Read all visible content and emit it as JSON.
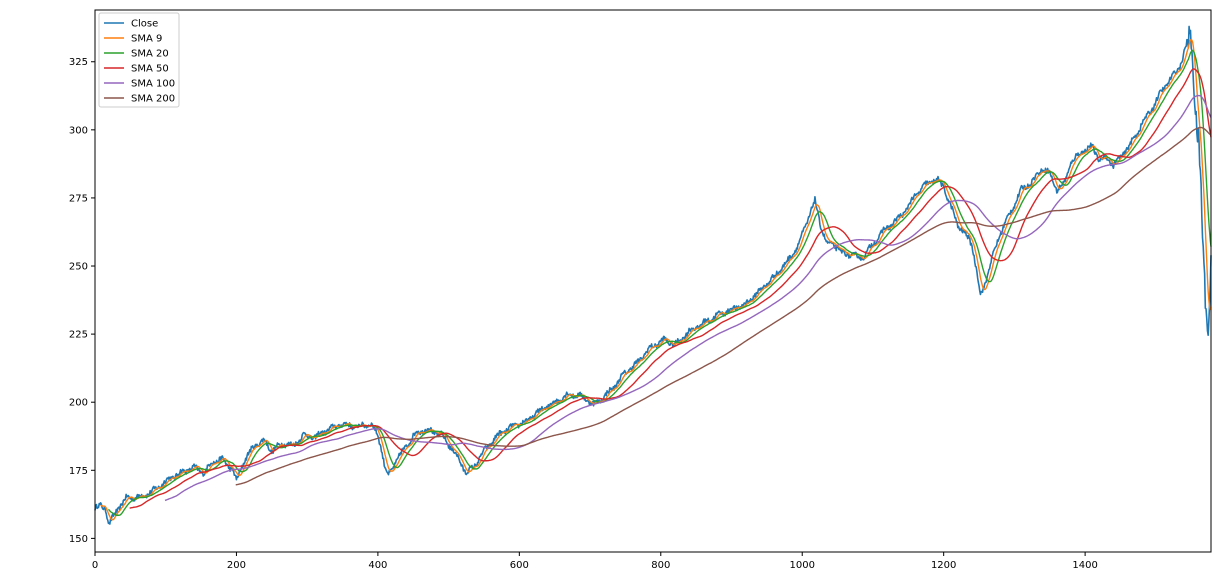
{
  "chart_data": {
    "type": "line",
    "title": "",
    "xlabel": "",
    "ylabel": "",
    "xlim": [
      0,
      1578
    ],
    "ylim": [
      145,
      344
    ],
    "xticks": [
      0,
      200,
      400,
      600,
      800,
      1000,
      1200,
      1400
    ],
    "yticks": [
      150,
      175,
      200,
      225,
      250,
      275,
      300,
      325
    ],
    "grid": false,
    "legend_position": "top-left",
    "close_anchors": [
      [
        0,
        161
      ],
      [
        8,
        162
      ],
      [
        15,
        161
      ],
      [
        20,
        155
      ],
      [
        30,
        160
      ],
      [
        45,
        165
      ],
      [
        60,
        165
      ],
      [
        80,
        167
      ],
      [
        100,
        171
      ],
      [
        120,
        174
      ],
      [
        140,
        176
      ],
      [
        155,
        174
      ],
      [
        165,
        178
      ],
      [
        180,
        179
      ],
      [
        195,
        175
      ],
      [
        200,
        171
      ],
      [
        210,
        178
      ],
      [
        225,
        184
      ],
      [
        240,
        186
      ],
      [
        250,
        182
      ],
      [
        265,
        185
      ],
      [
        280,
        184
      ],
      [
        295,
        188
      ],
      [
        310,
        187
      ],
      [
        330,
        190
      ],
      [
        350,
        192
      ],
      [
        370,
        191
      ],
      [
        390,
        192
      ],
      [
        400,
        188
      ],
      [
        405,
        183
      ],
      [
        410,
        176
      ],
      [
        415,
        173
      ],
      [
        425,
        178
      ],
      [
        440,
        184
      ],
      [
        455,
        189
      ],
      [
        470,
        190
      ],
      [
        490,
        188
      ],
      [
        510,
        181
      ],
      [
        525,
        174
      ],
      [
        535,
        176
      ],
      [
        550,
        182
      ],
      [
        570,
        188
      ],
      [
        590,
        191
      ],
      [
        610,
        193
      ],
      [
        630,
        197
      ],
      [
        650,
        200
      ],
      [
        670,
        203
      ],
      [
        690,
        202
      ],
      [
        705,
        199
      ],
      [
        720,
        202
      ],
      [
        735,
        206
      ],
      [
        750,
        211
      ],
      [
        765,
        214
      ],
      [
        785,
        220
      ],
      [
        805,
        223
      ],
      [
        820,
        221
      ],
      [
        840,
        226
      ],
      [
        860,
        229
      ],
      [
        880,
        232
      ],
      [
        900,
        234
      ],
      [
        920,
        236
      ],
      [
        940,
        241
      ],
      [
        960,
        246
      ],
      [
        980,
        252
      ],
      [
        995,
        258
      ],
      [
        1005,
        265
      ],
      [
        1012,
        270
      ],
      [
        1018,
        274
      ],
      [
        1025,
        266
      ],
      [
        1035,
        258
      ],
      [
        1045,
        258
      ],
      [
        1055,
        255
      ],
      [
        1070,
        254
      ],
      [
        1085,
        253
      ],
      [
        1100,
        258
      ],
      [
        1115,
        263
      ],
      [
        1130,
        266
      ],
      [
        1145,
        270
      ],
      [
        1160,
        276
      ],
      [
        1175,
        280
      ],
      [
        1190,
        282
      ],
      [
        1200,
        279
      ],
      [
        1210,
        272
      ],
      [
        1220,
        265
      ],
      [
        1230,
        262
      ],
      [
        1240,
        258
      ],
      [
        1247,
        248
      ],
      [
        1252,
        239
      ],
      [
        1258,
        243
      ],
      [
        1265,
        250
      ],
      [
        1280,
        262
      ],
      [
        1295,
        270
      ],
      [
        1310,
        278
      ],
      [
        1325,
        281
      ],
      [
        1340,
        286
      ],
      [
        1350,
        284
      ],
      [
        1360,
        278
      ],
      [
        1370,
        280
      ],
      [
        1380,
        288
      ],
      [
        1395,
        292
      ],
      [
        1410,
        294
      ],
      [
        1420,
        289
      ],
      [
        1430,
        290
      ],
      [
        1440,
        287
      ],
      [
        1450,
        290
      ],
      [
        1465,
        295
      ],
      [
        1480,
        302
      ],
      [
        1495,
        308
      ],
      [
        1510,
        315
      ],
      [
        1525,
        320
      ],
      [
        1535,
        324
      ],
      [
        1542,
        330
      ],
      [
        1548,
        335
      ],
      [
        1552,
        328
      ],
      [
        1556,
        305
      ],
      [
        1560,
        296
      ],
      [
        1563,
        285
      ],
      [
        1566,
        262
      ],
      [
        1569,
        244
      ],
      [
        1572,
        230
      ],
      [
        1575,
        228
      ],
      [
        1578,
        252
      ]
    ],
    "series": [
      {
        "name": "Close",
        "color": "#1f77b4",
        "window": 1
      },
      {
        "name": "SMA 9",
        "color": "#ff7f0e",
        "window": 9
      },
      {
        "name": "SMA 20",
        "color": "#2ca02c",
        "window": 20
      },
      {
        "name": "SMA 50",
        "color": "#d62728",
        "window": 50
      },
      {
        "name": "SMA 100",
        "color": "#9467bd",
        "window": 100
      },
      {
        "name": "SMA 200",
        "color": "#8c564b",
        "window": 200
      }
    ]
  }
}
